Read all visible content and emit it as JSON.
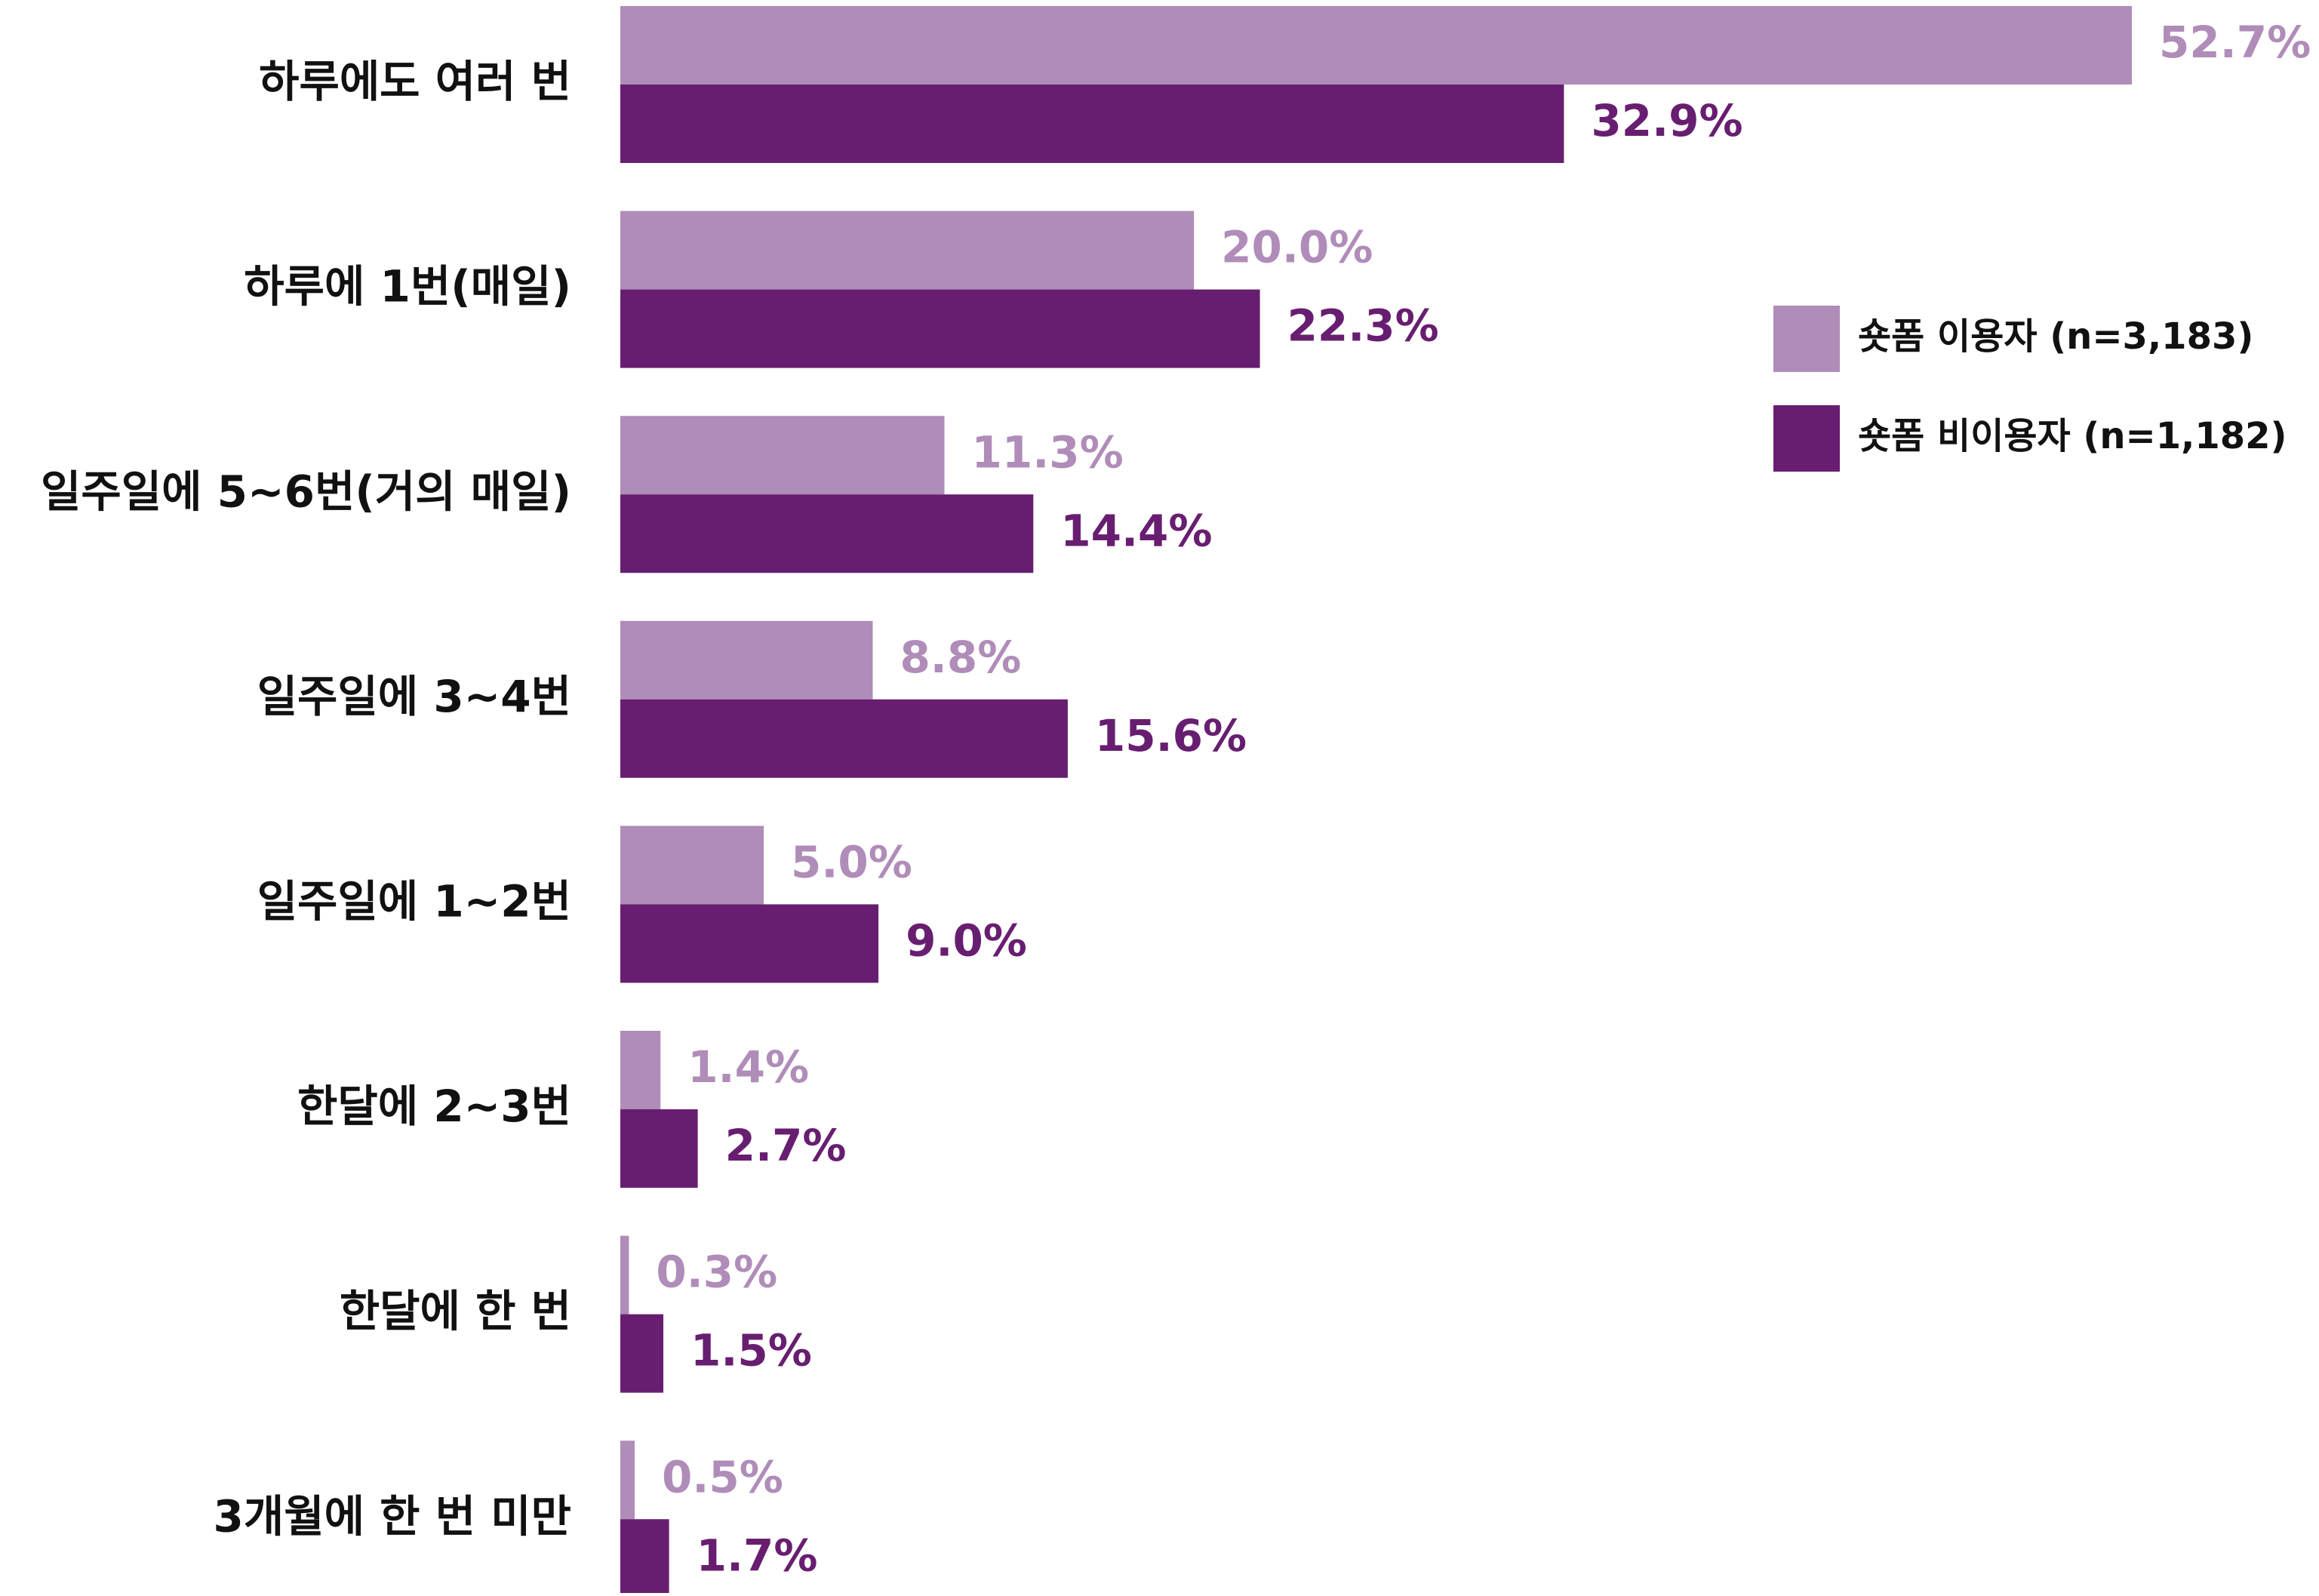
{
  "chart_data": {
    "type": "bar",
    "orientation": "horizontal",
    "title": "",
    "xlabel": "",
    "ylabel": "",
    "xlim": [
      0,
      52.7
    ],
    "grid": false,
    "legend_position": "right",
    "value_suffix": "%",
    "categories": [
      "하루에도 여러 번",
      "하루에 1번(매일)",
      "일주일에 5~6번(거의 매일)",
      "일주일에 3~4번",
      "일주일에 1~2번",
      "한달에 2~3번",
      "한달에 한 번",
      "3개월에 한 번 미만"
    ],
    "series": [
      {
        "name": "숏폼 이용자 (n=3,183)",
        "color": "#b08cb9",
        "values": [
          52.7,
          20.0,
          11.3,
          8.8,
          5.0,
          1.4,
          0.3,
          0.5
        ]
      },
      {
        "name": "숏폼 비이용자 (n=1,182)",
        "color": "#681e70",
        "values": [
          32.9,
          22.3,
          14.4,
          15.6,
          9.0,
          2.7,
          1.5,
          1.7
        ]
      }
    ]
  },
  "colors": {
    "category_label": "#111111",
    "background": "#ffffff"
  }
}
